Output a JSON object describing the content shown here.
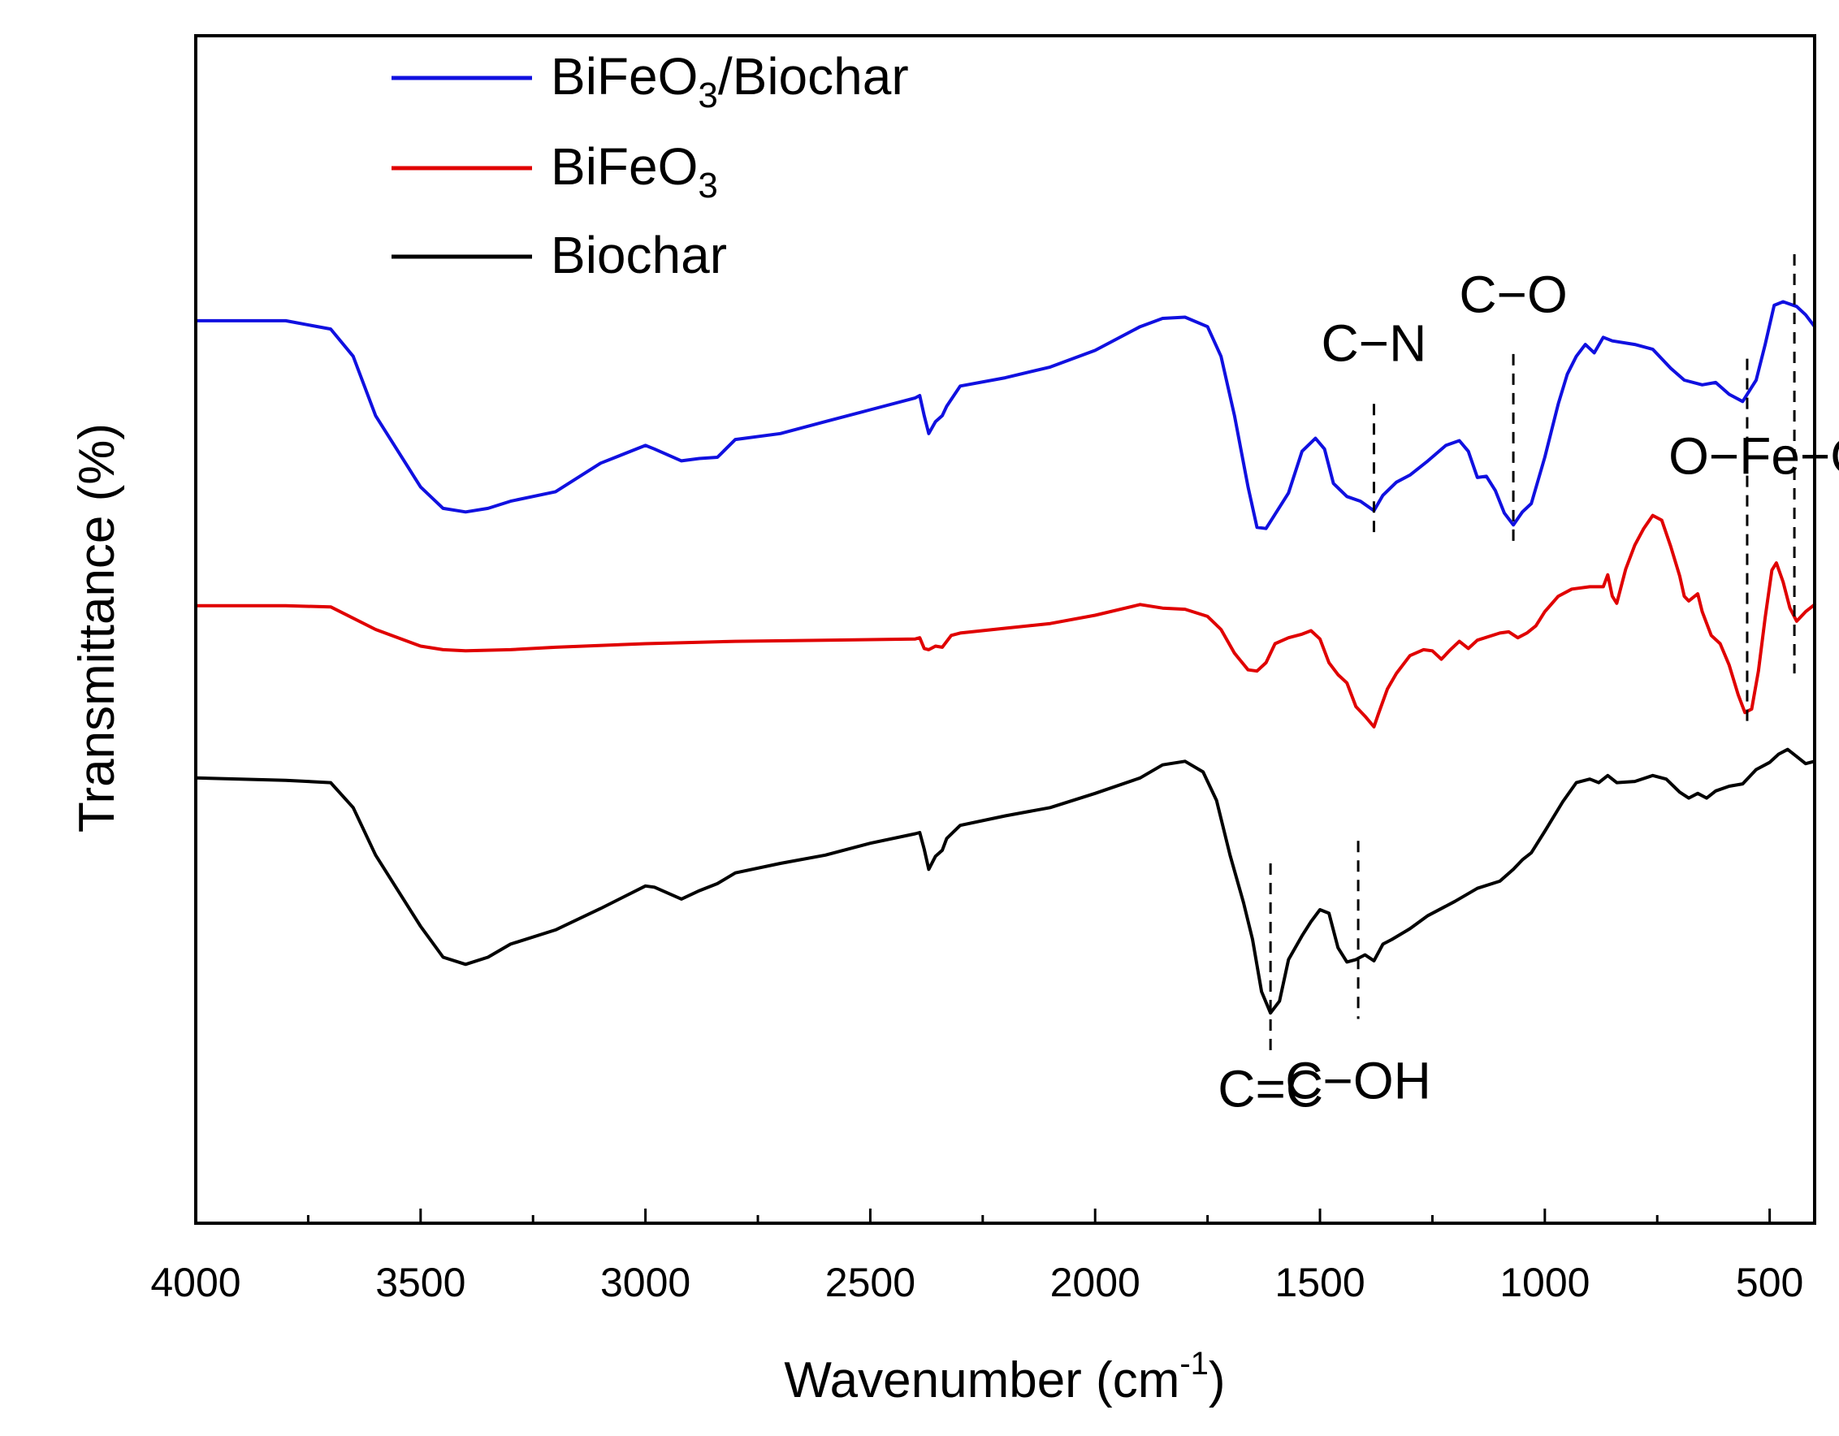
{
  "chart_data": {
    "type": "line",
    "title": "",
    "xlabel": "Wavenumber (cm",
    "xlabel_sup": "-1",
    "xlabel_close": ")",
    "ylabel": "Transmittance (%)",
    "xlim": [
      4000,
      400
    ],
    "ylim": [
      0,
      100
    ],
    "x_reversed": true,
    "xticks": [
      4000,
      3500,
      3000,
      2500,
      2000,
      1500,
      1000,
      500
    ],
    "xtick_labels": [
      "4000",
      "3500",
      "3000",
      "2500",
      "2000",
      "1500",
      "1000",
      "500"
    ],
    "grid": false,
    "legend_position": "top-left",
    "series": [
      {
        "name": "BiFeO3/Biochar",
        "legend_main": "BiFeO",
        "legend_sub": "3",
        "legend_rest": "/Biochar",
        "color": "#1010e0",
        "points": [
          [
            4000,
            76
          ],
          [
            3800,
            76
          ],
          [
            3700,
            75.3
          ],
          [
            3650,
            73
          ],
          [
            3600,
            68
          ],
          [
            3500,
            62
          ],
          [
            3450,
            60.2
          ],
          [
            3400,
            59.9
          ],
          [
            3350,
            60.2
          ],
          [
            3300,
            60.8
          ],
          [
            3200,
            61.6
          ],
          [
            3100,
            64
          ],
          [
            3000,
            65.5
          ],
          [
            2980,
            65.2
          ],
          [
            2920,
            64.2
          ],
          [
            2880,
            64.4
          ],
          [
            2840,
            64.5
          ],
          [
            2800,
            66
          ],
          [
            2700,
            66.5
          ],
          [
            2600,
            67.5
          ],
          [
            2500,
            68.5
          ],
          [
            2400,
            69.5
          ],
          [
            2390,
            69.7
          ],
          [
            2380,
            68
          ],
          [
            2370,
            66.5
          ],
          [
            2355,
            67.5
          ],
          [
            2340,
            68
          ],
          [
            2330,
            68.8
          ],
          [
            2300,
            70.5
          ],
          [
            2200,
            71.2
          ],
          [
            2100,
            72.1
          ],
          [
            2000,
            73.5
          ],
          [
            1900,
            75.5
          ],
          [
            1850,
            76.2
          ],
          [
            1800,
            76.3
          ],
          [
            1750,
            75.5
          ],
          [
            1720,
            73
          ],
          [
            1690,
            68
          ],
          [
            1660,
            62
          ],
          [
            1640,
            58.6
          ],
          [
            1620,
            58.5
          ],
          [
            1600,
            59.7
          ],
          [
            1570,
            61.5
          ],
          [
            1540,
            65
          ],
          [
            1510,
            66.1
          ],
          [
            1490,
            65.2
          ],
          [
            1470,
            62.3
          ],
          [
            1440,
            61.2
          ],
          [
            1410,
            60.8
          ],
          [
            1380,
            60
          ],
          [
            1360,
            61.3
          ],
          [
            1330,
            62.4
          ],
          [
            1300,
            63
          ],
          [
            1260,
            64.2
          ],
          [
            1220,
            65.5
          ],
          [
            1190,
            65.9
          ],
          [
            1170,
            65
          ],
          [
            1150,
            62.8
          ],
          [
            1130,
            62.9
          ],
          [
            1110,
            61.7
          ],
          [
            1090,
            59.8
          ],
          [
            1070,
            58.8
          ],
          [
            1050,
            59.9
          ],
          [
            1030,
            60.6
          ],
          [
            1000,
            64.5
          ],
          [
            970,
            69
          ],
          [
            950,
            71.5
          ],
          [
            930,
            73
          ],
          [
            910,
            74
          ],
          [
            890,
            73.3
          ],
          [
            870,
            74.6
          ],
          [
            850,
            74.3
          ],
          [
            800,
            74
          ],
          [
            760,
            73.6
          ],
          [
            720,
            72
          ],
          [
            690,
            71
          ],
          [
            650,
            70.6
          ],
          [
            620,
            70.8
          ],
          [
            590,
            69.8
          ],
          [
            560,
            69.2
          ],
          [
            530,
            71
          ],
          [
            510,
            74
          ],
          [
            490,
            77.3
          ],
          [
            470,
            77.6
          ],
          [
            440,
            77.2
          ],
          [
            420,
            76.5
          ],
          [
            400,
            75.5
          ]
        ]
      },
      {
        "name": "BiFeO3",
        "legend_main": "BiFeO",
        "legend_sub": "3",
        "legend_rest": "",
        "color": "#e00000",
        "points": [
          [
            4000,
            52
          ],
          [
            3800,
            52
          ],
          [
            3700,
            51.9
          ],
          [
            3600,
            50
          ],
          [
            3500,
            48.6
          ],
          [
            3450,
            48.3
          ],
          [
            3400,
            48.2
          ],
          [
            3300,
            48.3
          ],
          [
            3200,
            48.5
          ],
          [
            3000,
            48.8
          ],
          [
            2800,
            49
          ],
          [
            2600,
            49.1
          ],
          [
            2400,
            49.2
          ],
          [
            2390,
            49.3
          ],
          [
            2380,
            48.4
          ],
          [
            2370,
            48.3
          ],
          [
            2355,
            48.6
          ],
          [
            2340,
            48.5
          ],
          [
            2320,
            49.5
          ],
          [
            2300,
            49.7
          ],
          [
            2200,
            50.1
          ],
          [
            2100,
            50.5
          ],
          [
            2000,
            51.2
          ],
          [
            1900,
            52.1
          ],
          [
            1850,
            51.8
          ],
          [
            1800,
            51.7
          ],
          [
            1750,
            51.1
          ],
          [
            1720,
            50
          ],
          [
            1690,
            48
          ],
          [
            1660,
            46.6
          ],
          [
            1640,
            46.5
          ],
          [
            1620,
            47.2
          ],
          [
            1600,
            48.8
          ],
          [
            1570,
            49.3
          ],
          [
            1540,
            49.6
          ],
          [
            1520,
            49.9
          ],
          [
            1500,
            49.2
          ],
          [
            1480,
            47.2
          ],
          [
            1460,
            46.2
          ],
          [
            1440,
            45.5
          ],
          [
            1420,
            43.5
          ],
          [
            1400,
            42.7
          ],
          [
            1380,
            41.8
          ],
          [
            1370,
            42.9
          ],
          [
            1350,
            45
          ],
          [
            1330,
            46.3
          ],
          [
            1300,
            47.8
          ],
          [
            1270,
            48.3
          ],
          [
            1250,
            48.2
          ],
          [
            1230,
            47.5
          ],
          [
            1210,
            48.3
          ],
          [
            1190,
            49
          ],
          [
            1170,
            48.4
          ],
          [
            1150,
            49.1
          ],
          [
            1100,
            49.7
          ],
          [
            1080,
            49.8
          ],
          [
            1060,
            49.3
          ],
          [
            1040,
            49.7
          ],
          [
            1020,
            50.3
          ],
          [
            1000,
            51.5
          ],
          [
            970,
            52.8
          ],
          [
            940,
            53.4
          ],
          [
            900,
            53.6
          ],
          [
            870,
            53.6
          ],
          [
            860,
            54.6
          ],
          [
            850,
            52.8
          ],
          [
            840,
            52.2
          ],
          [
            820,
            55.1
          ],
          [
            800,
            57.1
          ],
          [
            780,
            58.5
          ],
          [
            760,
            59.6
          ],
          [
            740,
            59.2
          ],
          [
            720,
            57
          ],
          [
            700,
            54.5
          ],
          [
            690,
            52.8
          ],
          [
            680,
            52.4
          ],
          [
            660,
            53
          ],
          [
            650,
            51.5
          ],
          [
            630,
            49.5
          ],
          [
            610,
            48.8
          ],
          [
            590,
            47
          ],
          [
            570,
            44.5
          ],
          [
            555,
            43
          ],
          [
            540,
            43.3
          ],
          [
            525,
            46.5
          ],
          [
            510,
            51
          ],
          [
            495,
            55
          ],
          [
            485,
            55.6
          ],
          [
            470,
            54
          ],
          [
            455,
            51.8
          ],
          [
            440,
            50.7
          ],
          [
            420,
            51.5
          ],
          [
            400,
            52.1
          ]
        ]
      },
      {
        "name": "Biochar",
        "legend_main": "Biochar",
        "legend_sub": "",
        "legend_rest": "",
        "color": "#000000",
        "points": [
          [
            4000,
            37.5
          ],
          [
            3800,
            37.3
          ],
          [
            3700,
            37.1
          ],
          [
            3650,
            35
          ],
          [
            3600,
            31
          ],
          [
            3500,
            25
          ],
          [
            3450,
            22.4
          ],
          [
            3400,
            21.8
          ],
          [
            3350,
            22.4
          ],
          [
            3300,
            23.5
          ],
          [
            3200,
            24.7
          ],
          [
            3100,
            26.5
          ],
          [
            3000,
            28.4
          ],
          [
            2980,
            28.3
          ],
          [
            2920,
            27.3
          ],
          [
            2880,
            28
          ],
          [
            2840,
            28.6
          ],
          [
            2800,
            29.5
          ],
          [
            2700,
            30.3
          ],
          [
            2600,
            31
          ],
          [
            2500,
            32
          ],
          [
            2400,
            32.8
          ],
          [
            2390,
            32.9
          ],
          [
            2380,
            31.5
          ],
          [
            2370,
            29.8
          ],
          [
            2355,
            30.9
          ],
          [
            2340,
            31.4
          ],
          [
            2330,
            32.4
          ],
          [
            2300,
            33.5
          ],
          [
            2200,
            34.3
          ],
          [
            2100,
            35
          ],
          [
            2000,
            36.2
          ],
          [
            1900,
            37.5
          ],
          [
            1850,
            38.6
          ],
          [
            1800,
            38.9
          ],
          [
            1760,
            38
          ],
          [
            1730,
            35.6
          ],
          [
            1700,
            31
          ],
          [
            1670,
            27
          ],
          [
            1650,
            23.9
          ],
          [
            1630,
            19.5
          ],
          [
            1610,
            17.7
          ],
          [
            1590,
            18.7
          ],
          [
            1570,
            22.2
          ],
          [
            1540,
            24.2
          ],
          [
            1520,
            25.4
          ],
          [
            1500,
            26.4
          ],
          [
            1480,
            26.1
          ],
          [
            1460,
            23.2
          ],
          [
            1440,
            22
          ],
          [
            1420,
            22.2
          ],
          [
            1400,
            22.6
          ],
          [
            1380,
            22.1
          ],
          [
            1360,
            23.5
          ],
          [
            1340,
            23.9
          ],
          [
            1300,
            24.8
          ],
          [
            1260,
            25.9
          ],
          [
            1200,
            27.1
          ],
          [
            1150,
            28.2
          ],
          [
            1100,
            28.8
          ],
          [
            1070,
            29.8
          ],
          [
            1050,
            30.6
          ],
          [
            1030,
            31.2
          ],
          [
            1000,
            33
          ],
          [
            960,
            35.5
          ],
          [
            930,
            37.1
          ],
          [
            900,
            37.4
          ],
          [
            880,
            37.1
          ],
          [
            860,
            37.7
          ],
          [
            840,
            37.1
          ],
          [
            800,
            37.2
          ],
          [
            760,
            37.7
          ],
          [
            730,
            37.4
          ],
          [
            700,
            36.3
          ],
          [
            680,
            35.8
          ],
          [
            660,
            36.2
          ],
          [
            640,
            35.8
          ],
          [
            620,
            36.4
          ],
          [
            590,
            36.8
          ],
          [
            560,
            37
          ],
          [
            530,
            38.2
          ],
          [
            500,
            38.8
          ],
          [
            480,
            39.5
          ],
          [
            460,
            39.9
          ],
          [
            440,
            39.3
          ],
          [
            420,
            38.7
          ],
          [
            400,
            38.9
          ]
        ]
      }
    ],
    "annotations": [
      {
        "text": "C−N",
        "x": 1380,
        "label_y": 72.6,
        "line_y": [
          69,
          58.2
        ]
      },
      {
        "text": "C−O",
        "x": 1070,
        "label_y": 76.7,
        "line_y": [
          73.2,
          56.8
        ]
      },
      {
        "text": "O−Fe−O",
        "x": 500,
        "label_y": 63.1,
        "line_y": null
      },
      {
        "text": "",
        "x": 550,
        "label_y": null,
        "line_y": [
          72.8,
          42.3
        ]
      },
      {
        "text": "",
        "x": 445,
        "label_y": null,
        "line_y": [
          81.6,
          46.3
        ]
      },
      {
        "text": "C=C",
        "x": 1610,
        "label_y": 9.8,
        "line_y": [
          30.3,
          14
        ]
      },
      {
        "text": "C−OH",
        "x": 1415,
        "label_y": 10.5,
        "line_y": [
          32.2,
          17.2
        ]
      }
    ]
  }
}
